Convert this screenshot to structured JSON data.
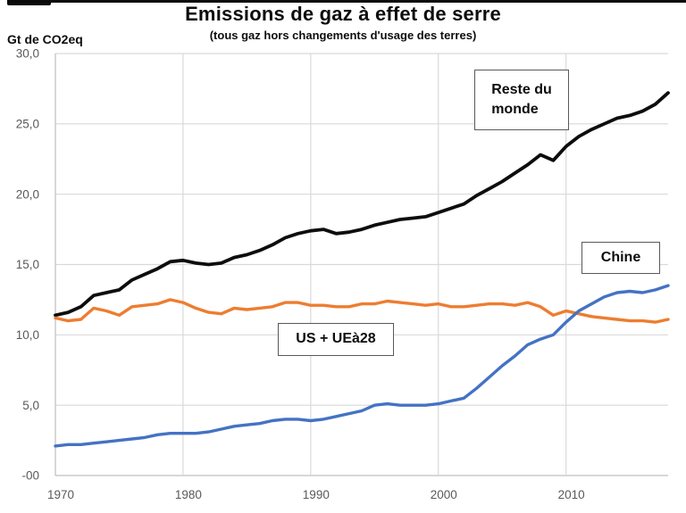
{
  "page": {
    "background": "#ffffff"
  },
  "header": {
    "title": "Emissions de gaz à effet de serre",
    "subtitle": "(tous gaz hors changements d'usage des terres)",
    "y_axis_unit": "Gt de CO2eq"
  },
  "annotations": {
    "reste": {
      "text_line1": "Reste du",
      "text_line2": "monde"
    },
    "chine": {
      "text": "Chine"
    },
    "usue": {
      "text": "US + UEà28"
    }
  },
  "colors": {
    "reste_line": "#0d0d0d",
    "usue_line": "#ED7D31",
    "chine_line": "#4472C4",
    "gridline": "#d9d9d9",
    "axis_line": "#bfbfbf",
    "tick_text": "#595959",
    "annotation_border": "#595959"
  },
  "chart_data": {
    "type": "line",
    "title": "Emissions de gaz à effet de serre",
    "subtitle": "(tous gaz hors changements d'usage des terres)",
    "ylabel": "Gt de CO2eq",
    "xlabel": "",
    "grid": true,
    "legend_position": "annotation-boxes-on-plot",
    "xlim": [
      1970,
      2018
    ],
    "ylim": [
      0,
      30
    ],
    "y_ticks": [
      {
        "label": "30,0",
        "value": 30
      },
      {
        "label": "25,0",
        "value": 25
      },
      {
        "label": "20,0",
        "value": 20
      },
      {
        "label": "15,0",
        "value": 15
      },
      {
        "label": "10,0",
        "value": 10
      },
      {
        "label": "5,0",
        "value": 5
      },
      {
        "label": "-00",
        "value": 0
      }
    ],
    "x_ticks": [
      {
        "label": "1970",
        "value": 1970
      },
      {
        "label": "1980",
        "value": 1980
      },
      {
        "label": "1990",
        "value": 1990
      },
      {
        "label": "2000",
        "value": 2000
      },
      {
        "label": "2010",
        "value": 2010
      }
    ],
    "x": [
      1970,
      1971,
      1972,
      1973,
      1974,
      1975,
      1976,
      1977,
      1978,
      1979,
      1980,
      1981,
      1982,
      1983,
      1984,
      1985,
      1986,
      1987,
      1988,
      1989,
      1990,
      1991,
      1992,
      1993,
      1994,
      1995,
      1996,
      1997,
      1998,
      1999,
      2000,
      2001,
      2002,
      2003,
      2004,
      2005,
      2006,
      2007,
      2008,
      2009,
      2010,
      2011,
      2012,
      2013,
      2014,
      2015,
      2016,
      2017,
      2018
    ],
    "series": [
      {
        "name": "Reste du monde",
        "color": "#0d0d0d",
        "stroke_width": 3.8,
        "values": [
          11.4,
          11.6,
          12.0,
          12.8,
          13.0,
          13.2,
          13.9,
          14.3,
          14.7,
          15.2,
          15.3,
          15.1,
          15.0,
          15.1,
          15.5,
          15.7,
          16.0,
          16.4,
          16.9,
          17.2,
          17.4,
          17.5,
          17.2,
          17.3,
          17.5,
          17.8,
          18.0,
          18.2,
          18.3,
          18.4,
          18.7,
          19.0,
          19.3,
          19.9,
          20.4,
          20.9,
          21.5,
          22.1,
          22.8,
          22.4,
          23.4,
          24.1,
          24.6,
          25.0,
          25.4,
          25.6,
          25.9,
          26.4,
          27.2
        ]
      },
      {
        "name": "US + UEà28",
        "color": "#ED7D31",
        "stroke_width": 3.4,
        "values": [
          11.2,
          11.0,
          11.1,
          11.9,
          11.7,
          11.4,
          12.0,
          12.1,
          12.2,
          12.5,
          12.3,
          11.9,
          11.6,
          11.5,
          11.9,
          11.8,
          11.9,
          12.0,
          12.3,
          12.3,
          12.1,
          12.1,
          12.0,
          12.0,
          12.2,
          12.2,
          12.4,
          12.3,
          12.2,
          12.1,
          12.2,
          12.0,
          12.0,
          12.1,
          12.2,
          12.2,
          12.1,
          12.3,
          12.0,
          11.4,
          11.7,
          11.5,
          11.3,
          11.2,
          11.1,
          11.0,
          11.0,
          10.9,
          11.1
        ]
      },
      {
        "name": "Chine",
        "color": "#4472C4",
        "stroke_width": 3.4,
        "values": [
          2.1,
          2.2,
          2.2,
          2.3,
          2.4,
          2.5,
          2.6,
          2.7,
          2.9,
          3.0,
          3.0,
          3.0,
          3.1,
          3.3,
          3.5,
          3.6,
          3.7,
          3.9,
          4.0,
          4.0,
          3.9,
          4.0,
          4.2,
          4.4,
          4.6,
          5.0,
          5.1,
          5.0,
          5.0,
          5.0,
          5.1,
          5.3,
          5.5,
          6.2,
          7.0,
          7.8,
          8.5,
          9.3,
          9.7,
          10.0,
          10.9,
          11.7,
          12.2,
          12.7,
          13.0,
          13.1,
          13.0,
          13.2,
          13.5
        ]
      }
    ]
  }
}
